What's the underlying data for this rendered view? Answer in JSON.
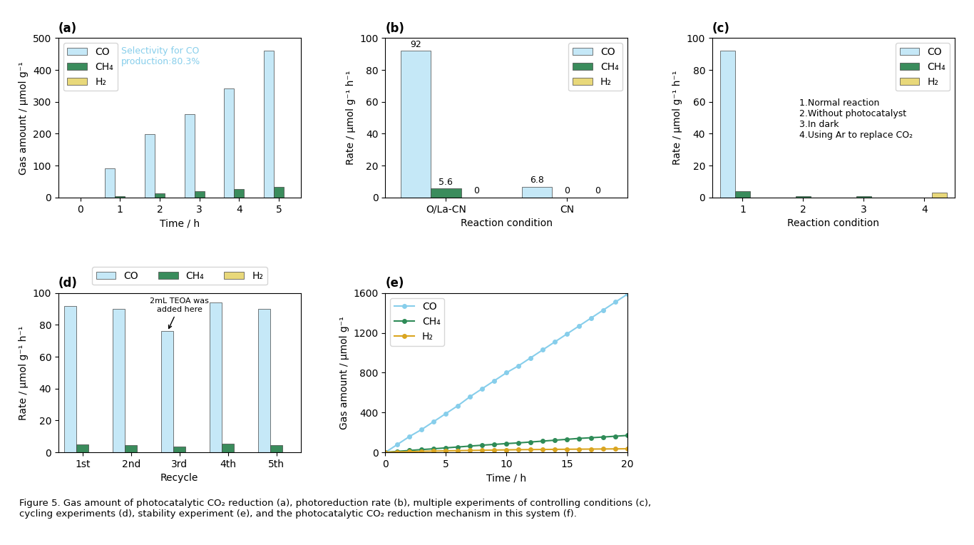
{
  "title": "Figure 5. Gas amount of photocatalytic CO₂ reduction (a), photoreduction rate (b), multiple experiments of controlling conditions (c),\ncycling experiments (d), stability experiment (e), and the photocatalytic CO₂ reduction mechanism in this system (f).",
  "chart_data": [
    {
      "type": "bar",
      "title": "(a)",
      "x": [
        0,
        1,
        2,
        3,
        4,
        5
      ],
      "xlim": [
        -0.55,
        5.55
      ],
      "xticks": [
        0,
        1,
        2,
        3,
        4,
        5
      ],
      "xlabel": "Time / h",
      "ylabel": "Gas amount / μmol g⁻¹",
      "ylim": [
        0,
        500
      ],
      "yticks": [
        0,
        100,
        200,
        300,
        400,
        500
      ],
      "series": [
        {
          "name": "CO",
          "color": "#c5e8f7",
          "values": [
            0,
            92,
            198,
            262,
            342,
            460
          ]
        },
        {
          "name": "CH₄",
          "color": "#3a8c5c",
          "values": [
            0,
            5,
            13,
            20,
            27,
            33
          ]
        },
        {
          "name": "H₂",
          "color": "#e8d87a",
          "values": [
            0,
            0,
            0,
            0,
            0,
            0
          ]
        }
      ],
      "legend": "upper left",
      "annotations": [
        {
          "text": "Selectivity for CO\nproduction:80.3%",
          "color": "#87CEEB"
        }
      ]
    },
    {
      "type": "bar",
      "title": "(b)",
      "categories": [
        "O/La-CN",
        "CN"
      ],
      "xlabel": "Reaction condition",
      "ylabel": "Rate / μmol g⁻¹ h⁻¹",
      "ylim": [
        0,
        100
      ],
      "yticks": [
        0,
        20,
        40,
        60,
        80,
        100
      ],
      "series": [
        {
          "name": "CO",
          "color": "#c5e8f7",
          "values": [
            92,
            6.8
          ]
        },
        {
          "name": "CH₄",
          "color": "#3a8c5c",
          "values": [
            5.6,
            0
          ]
        },
        {
          "name": "H₂",
          "color": "#e8d87a",
          "values": [
            0,
            0
          ]
        }
      ],
      "data_labels": true,
      "legend": "upper right"
    },
    {
      "type": "bar",
      "title": "(c)",
      "categories": [
        "1",
        "2",
        "3",
        "4"
      ],
      "xlabel": "Reaction condition",
      "ylabel": "Rate / μmol g⁻¹ h⁻¹",
      "ylim": [
        0,
        100
      ],
      "yticks": [
        0,
        20,
        40,
        60,
        80,
        100
      ],
      "series": [
        {
          "name": "CO",
          "color": "#c5e8f7",
          "values": [
            92,
            0,
            0,
            0
          ]
        },
        {
          "name": "CH₄",
          "color": "#3a8c5c",
          "values": [
            4,
            1,
            1,
            0
          ]
        },
        {
          "name": "H₂",
          "color": "#e8d87a",
          "values": [
            0,
            0,
            0,
            3
          ]
        }
      ],
      "legend": "upper right",
      "annotations": [
        {
          "text": "1.Normal reaction\n2.Without photocatalyst\n3.In dark\n4.Using Ar to replace CO₂"
        }
      ]
    },
    {
      "type": "bar",
      "title": "(d)",
      "categories": [
        "1st",
        "2nd",
        "3rd",
        "4th",
        "5th"
      ],
      "xlabel": "Recycle",
      "ylabel": "Rate / μmol g⁻¹ h⁻¹",
      "ylim": [
        0,
        100
      ],
      "yticks": [
        0,
        20,
        40,
        60,
        80,
        100
      ],
      "series": [
        {
          "name": "CO",
          "color": "#c5e8f7",
          "values": [
            92,
            90,
            76,
            94,
            90
          ]
        },
        {
          "name": "CH₄",
          "color": "#3a8c5c",
          "values": [
            5,
            4.5,
            3.5,
            5.5,
            4.5
          ]
        },
        {
          "name": "H₂",
          "color": "#e8d87a",
          "values": [
            0,
            0,
            0,
            0,
            0
          ]
        }
      ],
      "legend": "top",
      "annotations": [
        {
          "text": "2mL TEOA was\nadded here",
          "category": "3rd",
          "series": "CO"
        }
      ]
    },
    {
      "type": "line",
      "title": "(e)",
      "x": [
        0,
        1,
        2,
        3,
        4,
        5,
        6,
        7,
        8,
        9,
        10,
        11,
        12,
        13,
        14,
        15,
        16,
        17,
        18,
        19,
        20
      ],
      "xlim": [
        0,
        20
      ],
      "xticks": [
        0,
        5,
        10,
        15,
        20
      ],
      "xlabel": "Time / h",
      "ylabel": "Gas amount / μmol g⁻¹",
      "ylim": [
        0,
        1600
      ],
      "yticks": [
        0,
        400,
        800,
        1200,
        1600
      ],
      "series": [
        {
          "name": "CO",
          "color": "#87CEEB",
          "marker": "o",
          "values": [
            0,
            80,
            160,
            230,
            310,
            390,
            470,
            560,
            640,
            720,
            800,
            870,
            950,
            1030,
            1110,
            1190,
            1270,
            1350,
            1430,
            1510,
            1590
          ]
        },
        {
          "name": "CH₄",
          "color": "#2E8B57",
          "marker": "o",
          "values": [
            0,
            10,
            19,
            28,
            36,
            45,
            54,
            63,
            72,
            80,
            88,
            95,
            104,
            113,
            122,
            131,
            140,
            147,
            154,
            162,
            170
          ]
        },
        {
          "name": "H₂",
          "color": "#DAA520",
          "marker": "o",
          "values": [
            0,
            4,
            7,
            10,
            13,
            15,
            17,
            19,
            21,
            23,
            25,
            27,
            28,
            29,
            30,
            31,
            32,
            33,
            34,
            35,
            36
          ]
        }
      ],
      "legend": "upper left"
    }
  ]
}
